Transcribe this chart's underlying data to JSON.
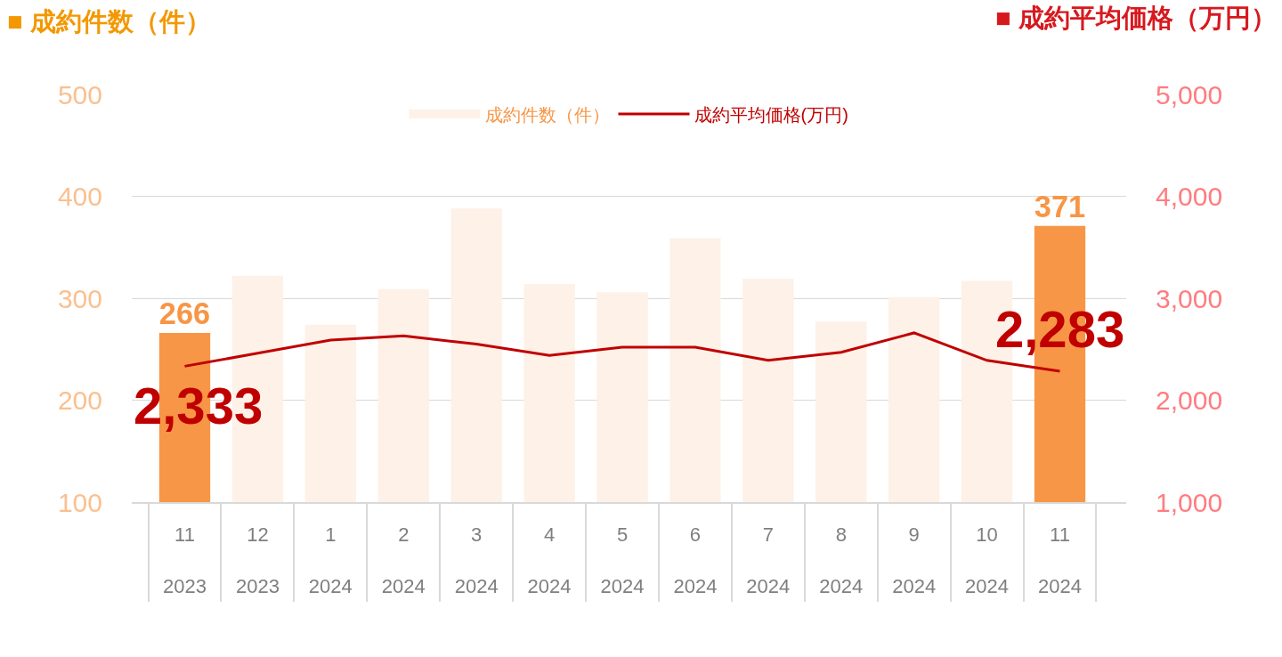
{
  "chart_data": {
    "type": "bar",
    "ylabel": "■ 成約件数（件）",
    "y2label": "■ 成約平均価格（万円）",
    "categories": [
      "11\n2023",
      "12\n2023",
      "1\n2024",
      "2\n2024",
      "3\n2024",
      "4\n2024",
      "5\n2024",
      "6\n2024",
      "7\n2024",
      "8\n2024",
      "9\n2024",
      "10\n2024",
      "11\n2024"
    ],
    "series": [
      {
        "name": "成約件数（件）",
        "color": "#fdf1e8",
        "colors": [
          "#f79646",
          "#fdf1e8",
          "#fdf1e8",
          "#fdf1e8",
          "#fdf1e8",
          "#fdf1e8",
          "#fdf1e8",
          "#fdf1e8",
          "#fdf1e8",
          "#fdf1e8",
          "#fdf1e8",
          "#fdf1e8",
          "#f79646"
        ],
        "values": [
          266,
          322,
          274,
          309,
          388,
          314,
          306,
          359,
          319,
          277,
          301,
          317,
          371
        ],
        "value_labels": [
          "266",
          null,
          null,
          null,
          null,
          null,
          null,
          null,
          null,
          null,
          null,
          null,
          "371"
        ]
      },
      {
        "name": "成約平均価格(万円)",
        "type": "line",
        "axis": "y2",
        "color": "#c00000",
        "values": [
          2333,
          2460,
          2590,
          2630,
          2550,
          2440,
          2520,
          2520,
          2390,
          2470,
          2660,
          2390,
          2283
        ],
        "value_labels": [
          "2,333",
          null,
          null,
          null,
          null,
          null,
          null,
          null,
          null,
          null,
          null,
          null,
          "2,283"
        ]
      }
    ],
    "ylim": [
      100,
      500
    ],
    "yticks": [
      100,
      200,
      300,
      400,
      500
    ],
    "y2lim": [
      1000,
      5000
    ],
    "y2ticks": [
      {
        "value": 1000,
        "label": "1,000"
      },
      {
        "value": 2000,
        "label": "2,000"
      },
      {
        "value": 3000,
        "label": "3,000"
      },
      {
        "value": 4000,
        "label": "4,000"
      },
      {
        "value": 5000,
        "label": "5,000"
      }
    ],
    "grid": "y",
    "legend": "top",
    "marker": "none"
  }
}
